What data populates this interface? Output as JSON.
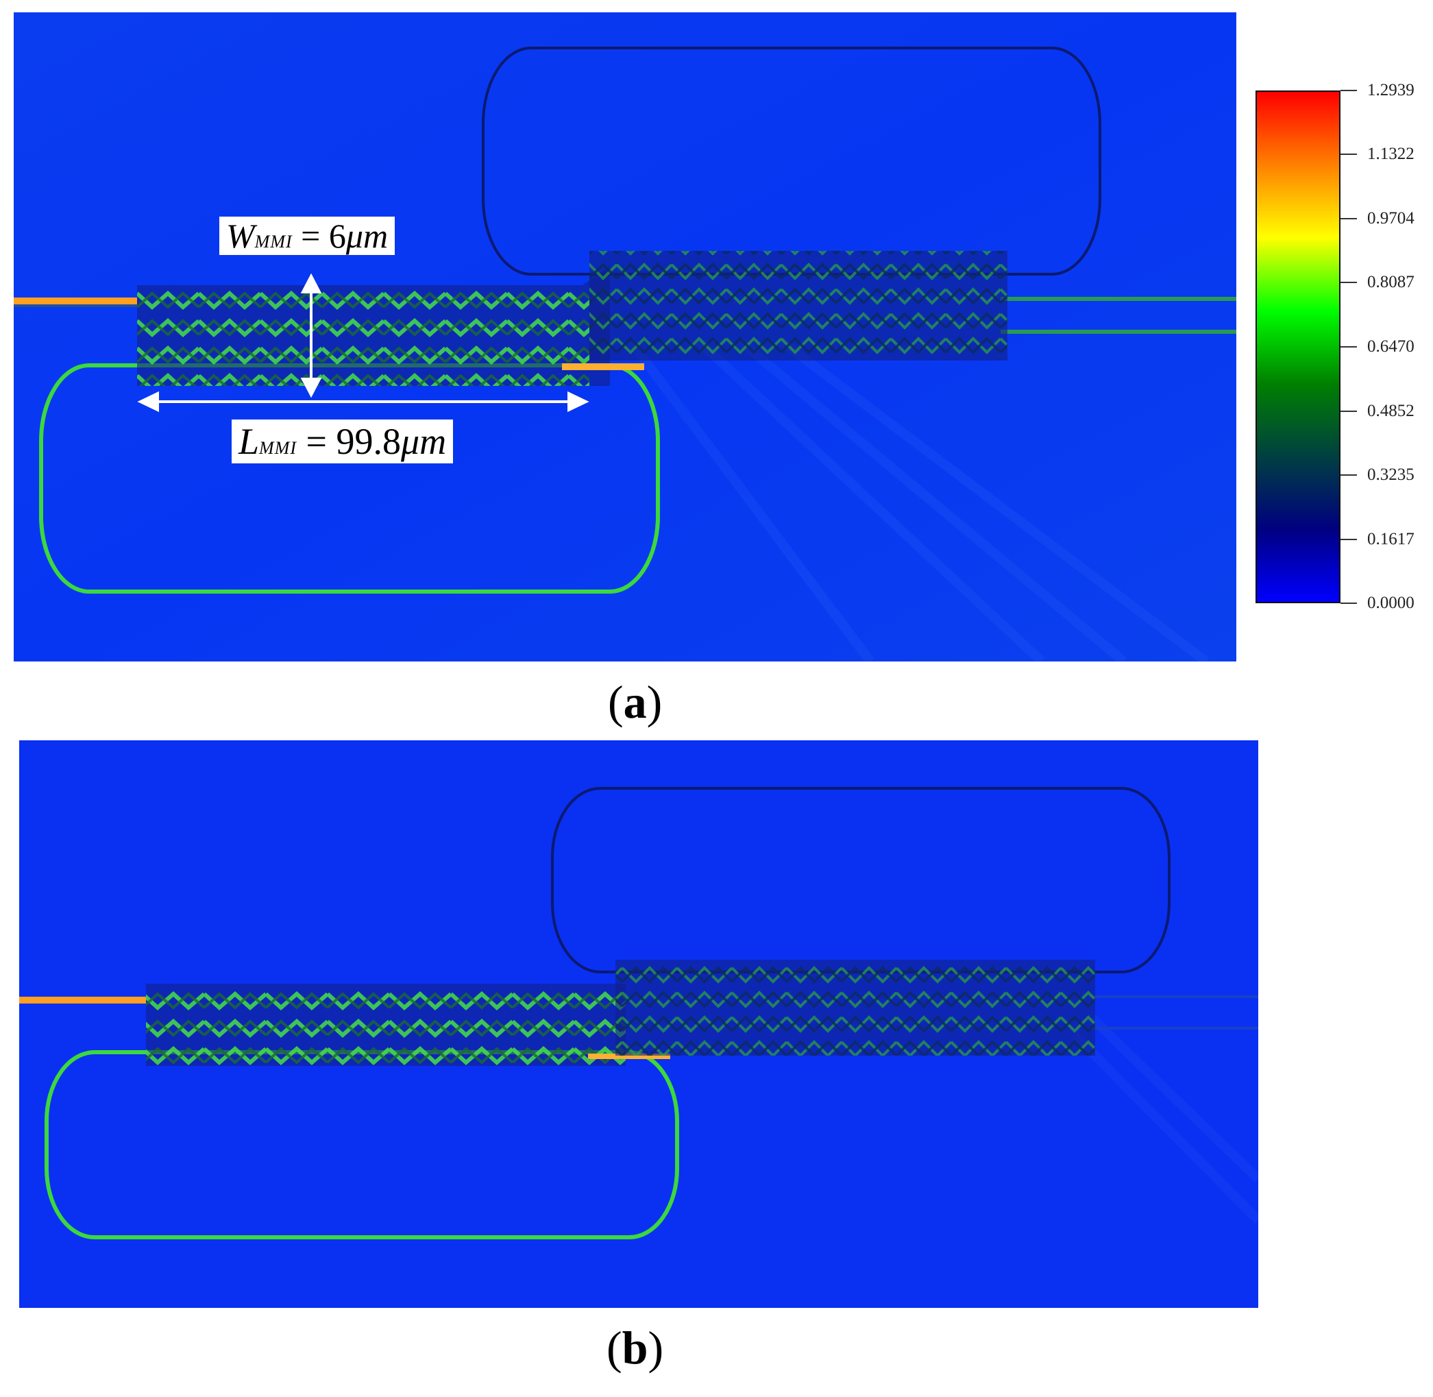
{
  "figure": {
    "panel_a": {
      "caption_letter": "a",
      "width_label": {
        "symbol": "W",
        "subscript": "MMI",
        "equals": " = ",
        "value": "6",
        "unit": "μm"
      },
      "length_label": {
        "symbol": "L",
        "subscript": "MMI",
        "equals": " = ",
        "value": "99.8",
        "unit": "μm"
      }
    },
    "panel_b": {
      "caption_letter": "b"
    },
    "colorbar": {
      "ticks": [
        "1.2939",
        "1.1322",
        "0.9704",
        "0.8087",
        "0.6470",
        "0.4852",
        "0.3235",
        "0.1617",
        "0.0000"
      ],
      "tick_values": [
        1.2939,
        1.1322,
        0.9704,
        0.8087,
        0.647,
        0.4852,
        0.3235,
        0.1617,
        0.0
      ],
      "colors": [
        "#ff0000",
        "#ff8000",
        "#ffff00",
        "#00ff00",
        "#008000",
        "#004040",
        "#000080",
        "#0000ff"
      ]
    },
    "colors": {
      "background_field": "#0a35f0",
      "guided_light": "#3cd83c",
      "input_hot": "#ffb030",
      "dark_ring": "#0a1a80"
    }
  }
}
